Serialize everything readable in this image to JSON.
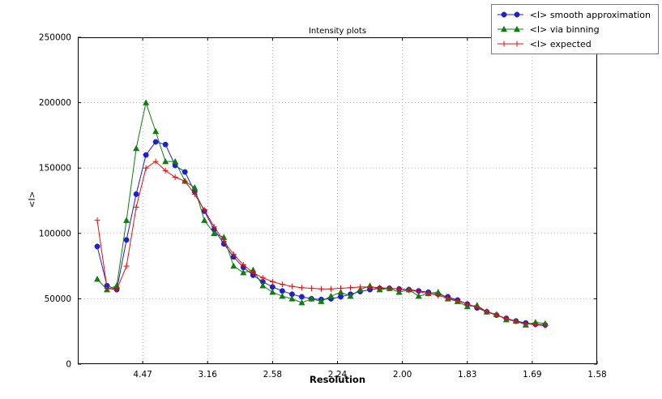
{
  "chart_data": {
    "type": "line",
    "title": "Intensity plots",
    "xlabel": "Resolution",
    "ylabel": "<I>",
    "grid": true,
    "legend_position": "top-right",
    "colors": {
      "grid": "#b3b3b3",
      "axis": "#000000",
      "background": "#ffffff"
    },
    "x_axis": {
      "range": [
        0,
        0.4
      ],
      "ticks": [
        {
          "pos": 0.05,
          "label": "4.47"
        },
        {
          "pos": 0.1,
          "label": "3.16"
        },
        {
          "pos": 0.15,
          "label": "2.58"
        },
        {
          "pos": 0.2,
          "label": "2.24"
        },
        {
          "pos": 0.25,
          "label": "2.00"
        },
        {
          "pos": 0.3,
          "label": "1.83"
        },
        {
          "pos": 0.35,
          "label": "1.69"
        },
        {
          "pos": 0.4,
          "label": "1.58"
        }
      ]
    },
    "y_axis": {
      "range": [
        0,
        250000
      ],
      "ticks": [
        {
          "value": 0,
          "label": "0"
        },
        {
          "value": 50000,
          "label": "50000"
        },
        {
          "value": 100000,
          "label": "100000"
        },
        {
          "value": 150000,
          "label": "150000"
        },
        {
          "value": 200000,
          "label": "200000"
        },
        {
          "value": 250000,
          "label": "250000"
        }
      ]
    },
    "x": [
      0.015,
      0.0225,
      0.03,
      0.0375,
      0.045,
      0.0525,
      0.06,
      0.0675,
      0.075,
      0.0825,
      0.09,
      0.0975,
      0.105,
      0.1125,
      0.12,
      0.1275,
      0.135,
      0.1425,
      0.15,
      0.1575,
      0.165,
      0.1725,
      0.18,
      0.1875,
      0.195,
      0.2025,
      0.21,
      0.2175,
      0.225,
      0.2325,
      0.24,
      0.2475,
      0.255,
      0.2625,
      0.27,
      0.2775,
      0.285,
      0.2925,
      0.3,
      0.3075,
      0.315,
      0.3225,
      0.33,
      0.3375,
      0.345,
      0.3525,
      0.36
    ],
    "series": [
      {
        "name": "<I> smooth approximation",
        "marker": "circle",
        "color": "#1f1fd0",
        "values": [
          90000,
          60000,
          57000,
          95000,
          130000,
          160000,
          170000,
          168000,
          152000,
          147000,
          132000,
          117000,
          103000,
          92000,
          82000,
          74000,
          68000,
          63000,
          59000,
          56000,
          53500,
          51500,
          50000,
          49500,
          50000,
          51500,
          53500,
          55500,
          57000,
          58000,
          58000,
          57500,
          57000,
          56000,
          55000,
          53500,
          51500,
          49000,
          46000,
          43000,
          40000,
          37500,
          35000,
          33000,
          31500,
          30500,
          30000
        ]
      },
      {
        "name": "<I> via binning",
        "marker": "triangle",
        "color": "#0f7d0f",
        "values": [
          65000,
          57000,
          60000,
          110000,
          165000,
          200000,
          178000,
          155000,
          155000,
          140000,
          135000,
          110000,
          100000,
          97000,
          75000,
          70000,
          72000,
          60000,
          55000,
          52000,
          50000,
          47000,
          50000,
          48000,
          52000,
          55000,
          52000,
          57000,
          60000,
          57000,
          58000,
          55000,
          57000,
          52000,
          54000,
          55000,
          50000,
          48000,
          44000,
          45000,
          40000,
          38000,
          34000,
          33000,
          30000,
          32000,
          31000
        ]
      },
      {
        "name": "<I> expected",
        "marker": "plus",
        "color": "#e01010",
        "values": [
          110000,
          58000,
          57000,
          75000,
          120000,
          150000,
          155000,
          148000,
          143000,
          140000,
          130000,
          118000,
          105000,
          94000,
          84000,
          76000,
          70000,
          66000,
          63000,
          61000,
          59500,
          58500,
          58000,
          57500,
          57500,
          58000,
          58500,
          59000,
          59000,
          58500,
          58000,
          57500,
          56500,
          55500,
          54000,
          52500,
          50500,
          48500,
          46000,
          43500,
          40500,
          37500,
          35000,
          32500,
          31000,
          30000,
          29500
        ]
      }
    ]
  }
}
